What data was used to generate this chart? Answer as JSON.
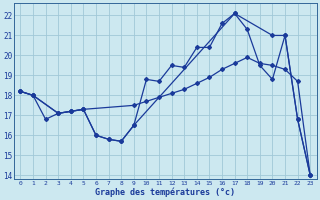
{
  "xlabel": "Graphe des températures (°c)",
  "bg_color": "#cce8f0",
  "line_color": "#1a3a9a",
  "grid_color": "#a0c8d8",
  "xlim": [
    -0.5,
    23.5
  ],
  "ylim": [
    13.8,
    22.6
  ],
  "yticks": [
    14,
    15,
    16,
    17,
    18,
    19,
    20,
    21,
    22
  ],
  "xticks": [
    0,
    1,
    2,
    3,
    4,
    5,
    6,
    7,
    8,
    9,
    10,
    11,
    12,
    13,
    14,
    15,
    16,
    17,
    18,
    19,
    20,
    21,
    22,
    23
  ],
  "line1_x": [
    0,
    1,
    2,
    3,
    4,
    5,
    6,
    7,
    8,
    9,
    10,
    11,
    12,
    13,
    14,
    15,
    16,
    17,
    18,
    19,
    20,
    21,
    22,
    23
  ],
  "line1_y": [
    18.2,
    18.0,
    16.8,
    17.1,
    17.2,
    17.3,
    16.0,
    15.8,
    15.7,
    16.5,
    18.8,
    18.7,
    19.5,
    19.4,
    20.4,
    20.4,
    21.6,
    22.1,
    21.3,
    19.5,
    18.8,
    21.0,
    16.8,
    14.0
  ],
  "line2_x": [
    0,
    1,
    3,
    4,
    5,
    9,
    10,
    11,
    12,
    13,
    14,
    15,
    16,
    17,
    18,
    19,
    20,
    21,
    22,
    23
  ],
  "line2_y": [
    18.2,
    18.0,
    17.1,
    17.2,
    17.3,
    17.5,
    17.7,
    17.9,
    18.1,
    18.3,
    18.6,
    18.9,
    19.3,
    19.6,
    19.9,
    19.6,
    19.5,
    19.3,
    18.7,
    14.0
  ],
  "line3_x": [
    0,
    1,
    3,
    4,
    5,
    6,
    7,
    8,
    9,
    17,
    20,
    21,
    22,
    23
  ],
  "line3_y": [
    18.2,
    18.0,
    17.1,
    17.2,
    17.3,
    16.0,
    15.8,
    15.7,
    16.5,
    22.1,
    21.0,
    21.0,
    16.8,
    14.0
  ]
}
